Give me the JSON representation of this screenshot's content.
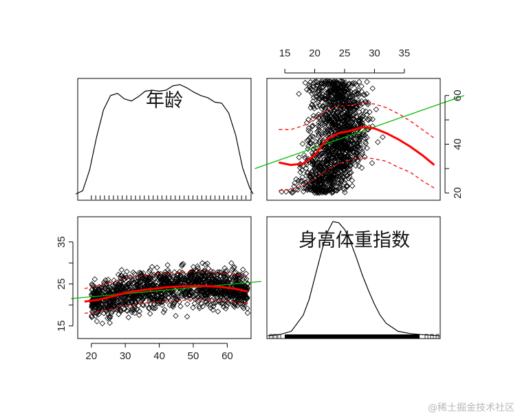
{
  "chart_data": {
    "type": "scatter",
    "variables": [
      "年龄",
      "身高体重指数"
    ],
    "watermark": "@稀土掘金技术社区",
    "colors": {
      "points": "#000000",
      "loess": "#ff0000",
      "spread": "#ff0000",
      "lm": "#00bb00",
      "frame": "#000000"
    },
    "age": {
      "range": [
        16,
        67
      ],
      "ticks": [
        20,
        30,
        40,
        50,
        60
      ],
      "density_x": [
        16,
        18,
        20,
        22,
        24,
        26,
        28,
        30,
        32,
        34,
        36,
        38,
        40,
        42,
        44,
        46,
        48,
        50,
        52,
        54,
        56,
        58,
        60,
        62,
        64,
        66,
        67
      ],
      "density_y": [
        0.0,
        0.03,
        0.22,
        0.52,
        0.77,
        0.9,
        0.92,
        0.87,
        0.85,
        0.89,
        0.94,
        0.95,
        0.94,
        0.95,
        0.99,
        1.0,
        0.97,
        0.93,
        0.9,
        0.88,
        0.84,
        0.83,
        0.74,
        0.54,
        0.24,
        0.06,
        0.0
      ]
    },
    "bmi": {
      "range": [
        12,
        41
      ],
      "ticks": [
        15,
        20,
        25,
        30,
        35
      ],
      "density_x": [
        12,
        14,
        16,
        18,
        19,
        20,
        21,
        22,
        23,
        24,
        25,
        26,
        27,
        28,
        29,
        30,
        31,
        32,
        34,
        36,
        38,
        41
      ],
      "density_y": [
        0.0,
        0.01,
        0.04,
        0.18,
        0.32,
        0.52,
        0.72,
        0.9,
        1.0,
        0.99,
        0.93,
        0.82,
        0.68,
        0.53,
        0.4,
        0.28,
        0.18,
        0.11,
        0.04,
        0.02,
        0.01,
        0.0
      ]
    },
    "age_vs_bmi": {
      "loess_x": [
        18,
        22,
        26,
        30,
        34,
        38,
        42,
        46,
        50,
        54,
        58,
        62,
        66
      ],
      "loess_y": [
        20.8,
        21.2,
        22.0,
        22.9,
        23.4,
        23.8,
        24.2,
        24.4,
        24.5,
        24.5,
        24.3,
        23.9,
        23.2
      ],
      "upper_y": [
        23.9,
        24.6,
        25.5,
        26.4,
        26.9,
        27.3,
        27.6,
        27.8,
        27.9,
        27.9,
        27.6,
        27.3,
        26.8
      ],
      "lower_y": [
        18.0,
        18.4,
        19.0,
        19.8,
        20.3,
        20.7,
        20.9,
        21.1,
        21.2,
        21.2,
        21.0,
        20.7,
        20.3
      ],
      "lm": {
        "x": [
          14,
          70
        ],
        "y": [
          21.5,
          25.6
        ]
      }
    },
    "bmi_vs_age": {
      "loess_x": [
        14,
        16,
        18,
        20,
        22,
        24,
        26,
        28,
        30,
        32,
        34,
        36,
        38,
        40
      ],
      "loess_y": [
        32.5,
        31.5,
        32.0,
        35.5,
        42.0,
        44.5,
        45.5,
        47.0,
        46.5,
        44.5,
        42.0,
        39.0,
        35.5,
        31.5
      ],
      "upper_y": [
        46.0,
        46.0,
        47.5,
        50.0,
        54.0,
        55.5,
        56.0,
        57.0,
        56.5,
        55.0,
        52.5,
        49.5,
        46.0,
        42.5
      ],
      "lower_y": [
        21.0,
        21.5,
        23.0,
        25.5,
        29.5,
        32.0,
        33.5,
        34.5,
        34.0,
        33.0,
        30.5,
        28.5,
        25.0,
        22.0
      ],
      "lm": {
        "x": [
          10,
          45
        ],
        "y": [
          30.0,
          60.0
        ]
      }
    }
  }
}
